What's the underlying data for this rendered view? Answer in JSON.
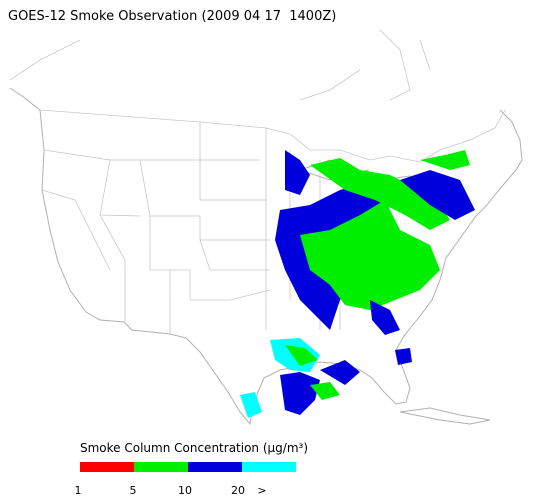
{
  "title": "GOES-12 Smoke Observation (2009 04 17  1400Z)",
  "legend": {
    "title": "Smoke Column Concentration (μg/m³)",
    "colors": [
      "#ff0000",
      "#00ee00",
      "#0000dd",
      "#00ffff"
    ],
    "labels": [
      "1",
      "5",
      "10",
      "20",
      ">"
    ]
  }
}
